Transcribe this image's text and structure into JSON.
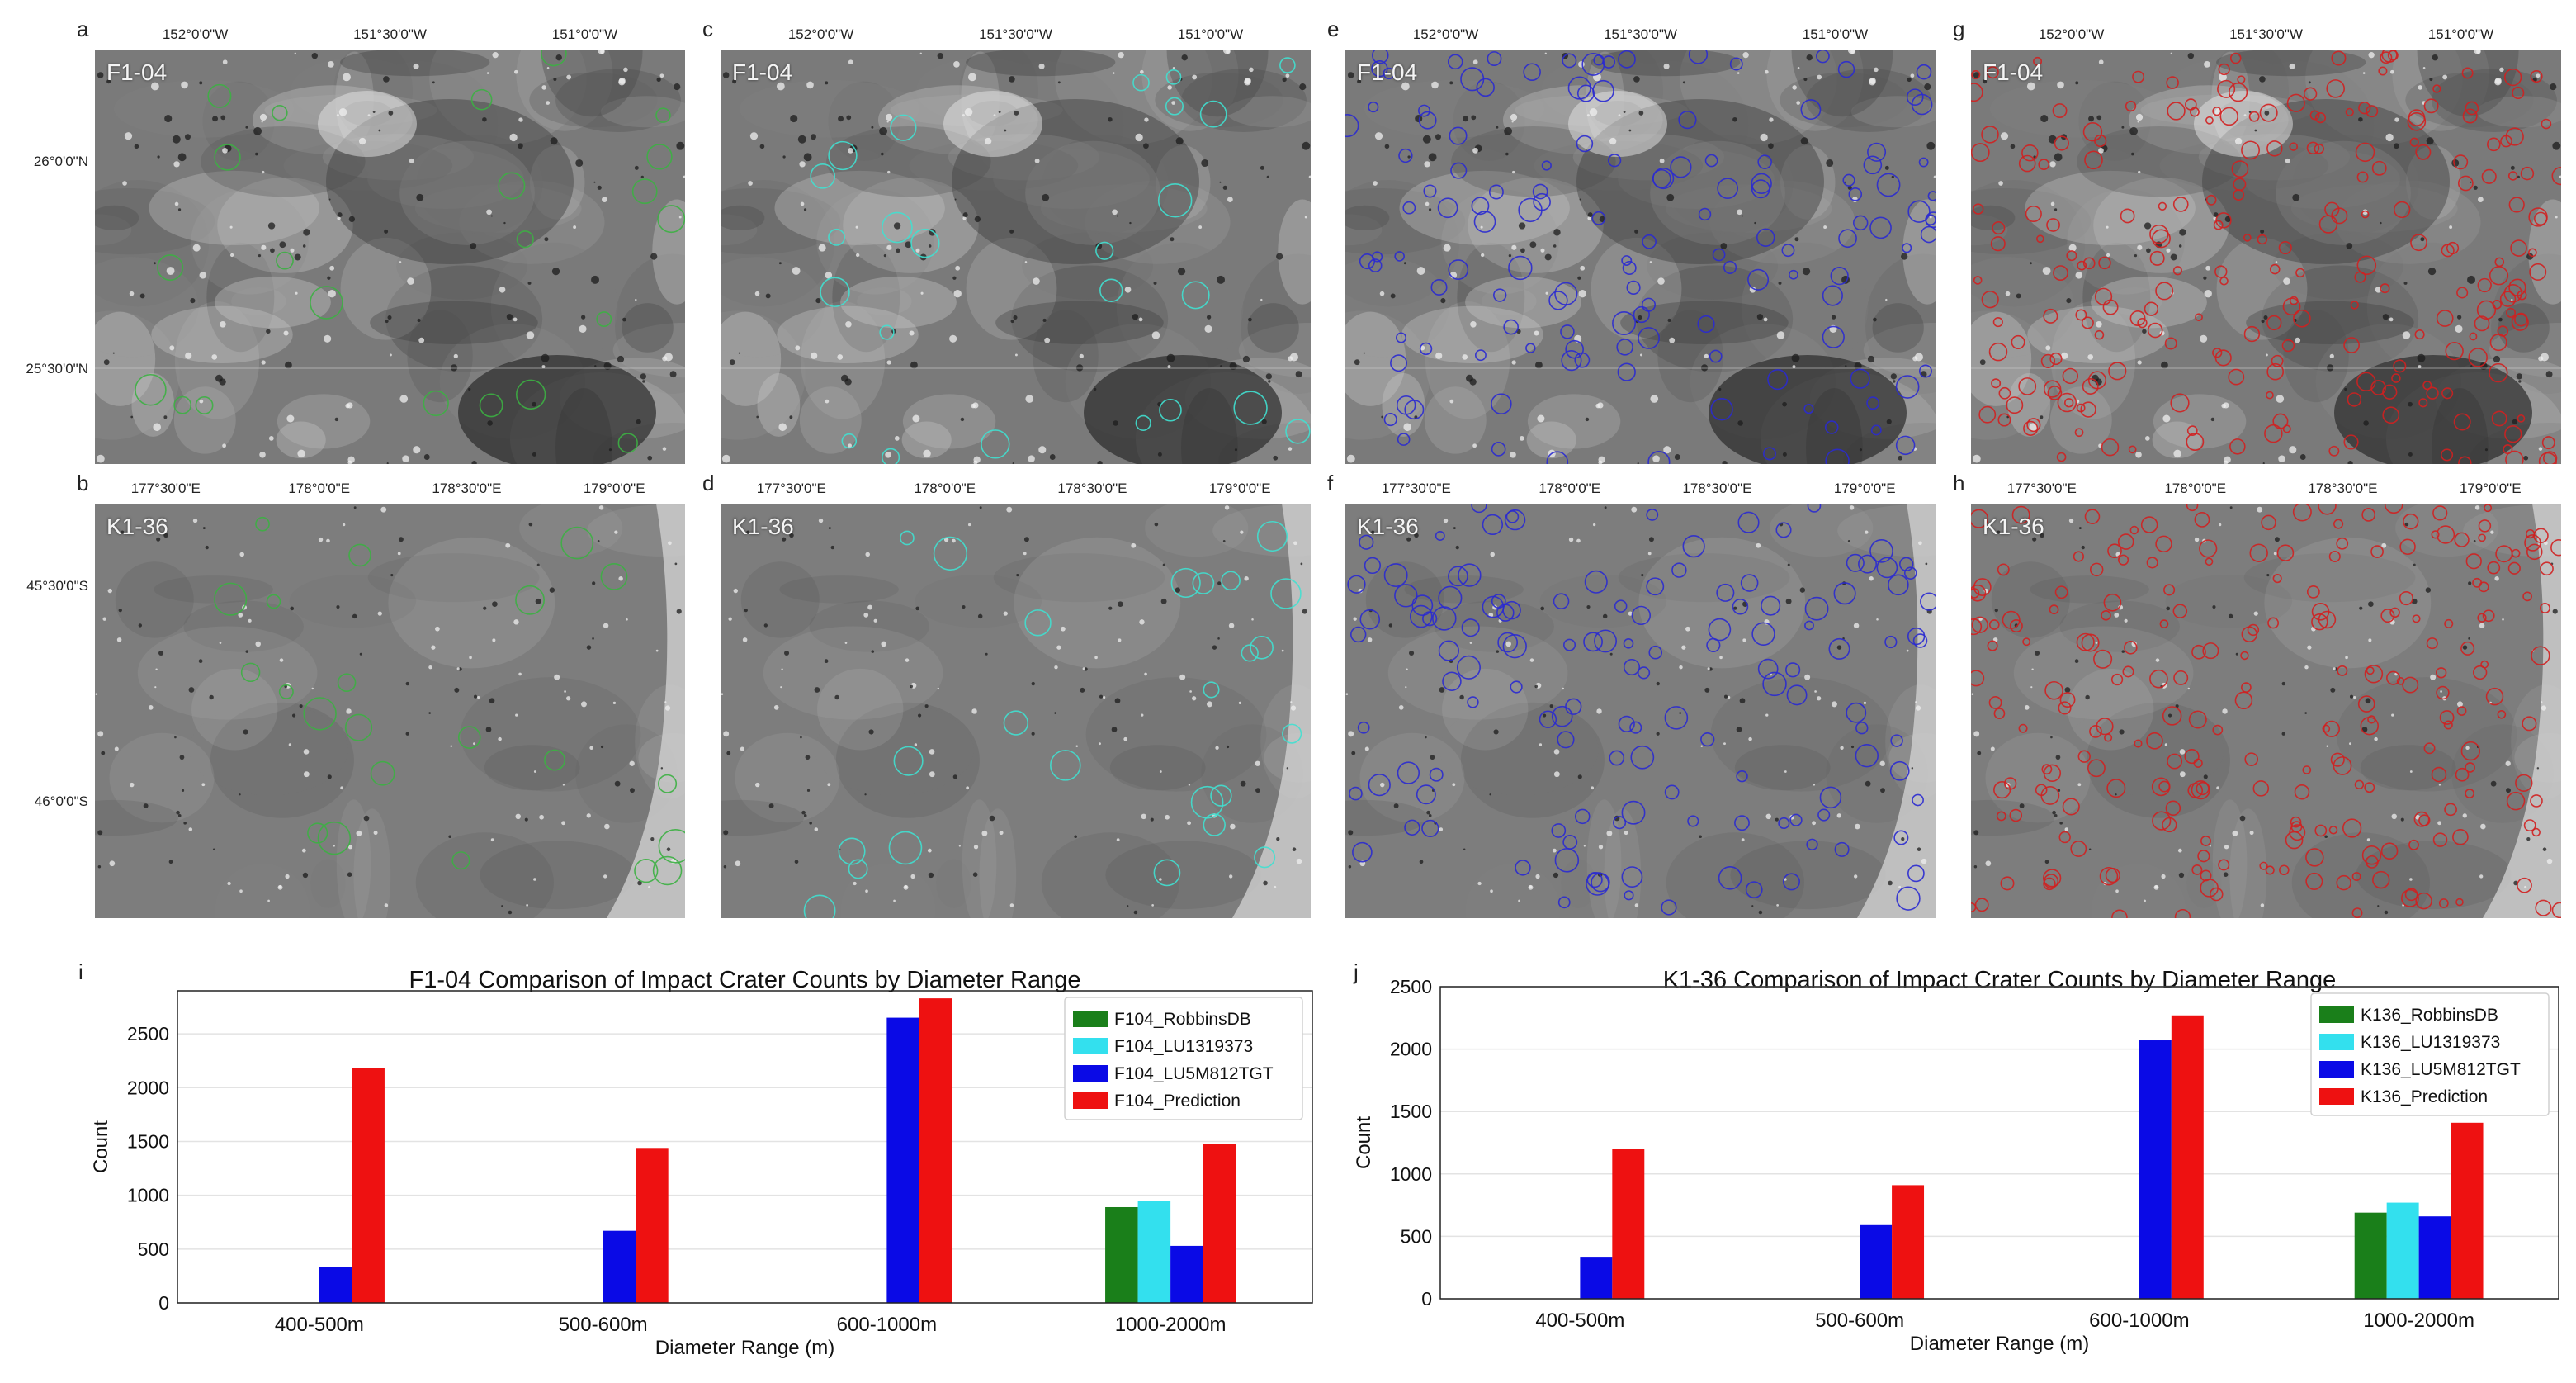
{
  "image_panels": [
    {
      "letter": "a",
      "region": "F1-04",
      "overlay": "green",
      "lon": [
        "152°0'0\"W",
        "151°30'0\"W",
        "151°0'0\"W"
      ],
      "lat": [
        "26°0'0\"N",
        "25°30'0\"N"
      ],
      "color": "#3cb043"
    },
    {
      "letter": "c",
      "region": "F1-04",
      "overlay": "cyan",
      "lon": [
        "152°0'0\"W",
        "151°30'0\"W",
        "151°0'0\"W"
      ],
      "lat": [],
      "color": "#40e0d0"
    },
    {
      "letter": "e",
      "region": "F1-04",
      "overlay": "blue",
      "lon": [
        "152°0'0\"W",
        "151°30'0\"W",
        "151°0'0\"W"
      ],
      "lat": [],
      "color": "#2a2ad0"
    },
    {
      "letter": "g",
      "region": "F1-04",
      "overlay": "red",
      "lon": [
        "152°0'0\"W",
        "151°30'0\"W",
        "151°0'0\"W"
      ],
      "lat": [],
      "color": "#d02020"
    },
    {
      "letter": "b",
      "region": "K1-36",
      "overlay": "green",
      "lon": [
        "177°30'0\"E",
        "178°0'0\"E",
        "178°30'0\"E",
        "179°0'0\"E"
      ],
      "lat": [
        "45°30'0\"S",
        "46°0'0\"S"
      ],
      "color": "#3cb043"
    },
    {
      "letter": "d",
      "region": "K1-36",
      "overlay": "cyan",
      "lon": [
        "177°30'0\"E",
        "178°0'0\"E",
        "178°30'0\"E",
        "179°0'0\"E"
      ],
      "lat": [],
      "color": "#40e0d0"
    },
    {
      "letter": "f",
      "region": "K1-36",
      "overlay": "blue",
      "lon": [
        "177°30'0\"E",
        "178°0'0\"E",
        "178°30'0\"E",
        "179°0'0\"E"
      ],
      "lat": [],
      "color": "#2a2ad0"
    },
    {
      "letter": "h",
      "region": "K1-36",
      "overlay": "red",
      "lon": [
        "177°30'0\"E",
        "178°0'0\"E",
        "178°30'0\"E",
        "179°0'0\"E"
      ],
      "lat": [],
      "color": "#d02020"
    }
  ],
  "chart_data": [
    {
      "letter": "i",
      "type": "bar",
      "title": "F1-04 Comparison of Impact Crater Counts by Diameter Range",
      "xlabel": "Diameter Range (m)",
      "ylabel": "Count",
      "categories": [
        "400-500m",
        "500-600m",
        "600-1000m",
        "1000-2000m"
      ],
      "ylim": [
        0,
        2900
      ],
      "yticks": [
        0,
        500,
        1000,
        1500,
        2000,
        2500
      ],
      "grid": true,
      "legend_position": "top-right",
      "series": [
        {
          "name": "F104_RobbinsDB",
          "color": "#1a7f1a",
          "values": [
            0,
            0,
            0,
            890
          ]
        },
        {
          "name": "F104_LU1319373",
          "color": "#33e0ee",
          "values": [
            0,
            0,
            0,
            950
          ]
        },
        {
          "name": "F104_LU5M812TGT",
          "color": "#0a0ae6",
          "values": [
            330,
            670,
            2650,
            530
          ]
        },
        {
          "name": "F104_Prediction",
          "color": "#ee1111",
          "values": [
            2180,
            1440,
            2830,
            1480
          ]
        }
      ]
    },
    {
      "letter": "j",
      "type": "bar",
      "title": "K1-36 Comparison of Impact Crater Counts by Diameter Range",
      "xlabel": "Diameter Range (m)",
      "ylabel": "Count",
      "categories": [
        "400-500m",
        "500-600m",
        "600-1000m",
        "1000-2000m"
      ],
      "ylim": [
        0,
        2500
      ],
      "yticks": [
        0,
        500,
        1000,
        1500,
        2000,
        2500
      ],
      "grid": true,
      "legend_position": "top-right",
      "series": [
        {
          "name": "K136_RobbinsDB",
          "color": "#1a7f1a",
          "values": [
            0,
            0,
            0,
            690
          ]
        },
        {
          "name": "K136_LU1319373",
          "color": "#33e0ee",
          "values": [
            0,
            0,
            0,
            770
          ]
        },
        {
          "name": "K136_LU5M812TGT",
          "color": "#0a0ae6",
          "values": [
            330,
            590,
            2070,
            660
          ]
        },
        {
          "name": "K136_Prediction",
          "color": "#ee1111",
          "values": [
            1200,
            910,
            2270,
            1410
          ]
        }
      ]
    }
  ]
}
